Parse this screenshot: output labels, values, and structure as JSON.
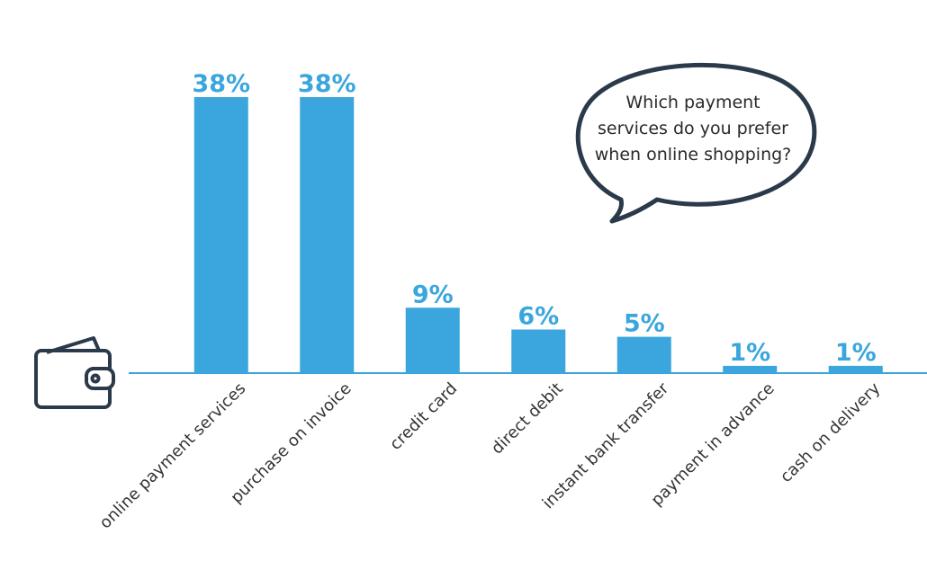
{
  "chart_data": {
    "type": "bar",
    "annotation": "Which payment services do you prefer when online shopping?",
    "categories": [
      "online payment services",
      "purchase on invoice",
      "credit card",
      "direct debit",
      "instant bank transfer",
      "payment in advance",
      "cash on delivery"
    ],
    "values": [
      38,
      38,
      9,
      6,
      5,
      1,
      1
    ],
    "value_labels": [
      "38%",
      "38%",
      "9%",
      "6%",
      "5%",
      "1%",
      "1%"
    ],
    "color": "#3aa6dd"
  }
}
